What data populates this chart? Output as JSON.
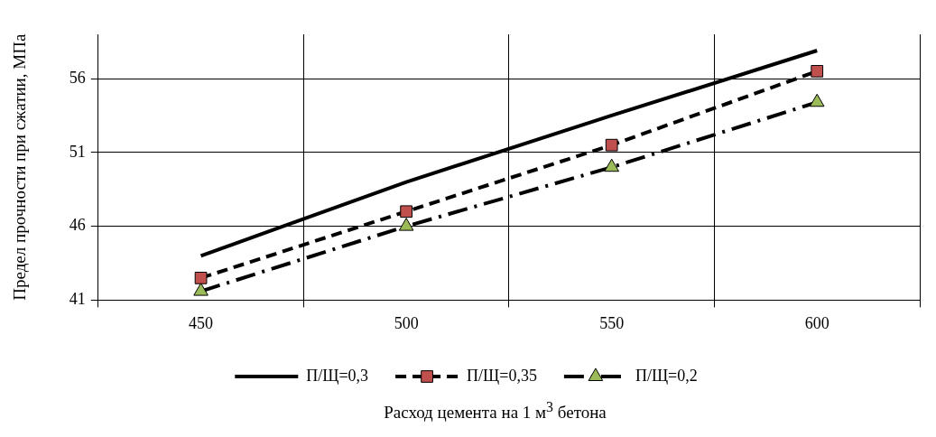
{
  "chart_data": {
    "type": "line",
    "xlabel": "Расход цемента на 1 м$^{3}$ бетона",
    "ylabel": "Предел прочности при сжатии, МПа",
    "categories": [
      "450",
      "500",
      "550",
      "600"
    ],
    "series": [
      {
        "name": "П/Щ=0,3",
        "color": "#000000",
        "marker": "none",
        "line_style": "solid",
        "values": [
          44.0,
          49.0,
          53.5,
          57.9
        ]
      },
      {
        "name": "П/Щ=0,35",
        "color": "#000000",
        "colors": [
          "#c0504d",
          "#c0504d",
          "#c0504d",
          "#c0504d"
        ],
        "marker": "square",
        "line_style": "dashed",
        "values": [
          42.5,
          47.0,
          51.5,
          56.5
        ]
      },
      {
        "name": "П/Щ=0,2",
        "color": "#000000",
        "colors": [
          "#9bbb59",
          "#9bbb59",
          "#9bbb59",
          "#9bbb59"
        ],
        "marker": "triangle",
        "line_style": "dashdot",
        "values": [
          41.6,
          46.0,
          50.0,
          54.4
        ]
      }
    ],
    "ylim": [
      41,
      59
    ],
    "yticks": [
      41,
      46,
      51,
      56
    ],
    "grid": true,
    "legend": "bottom"
  }
}
